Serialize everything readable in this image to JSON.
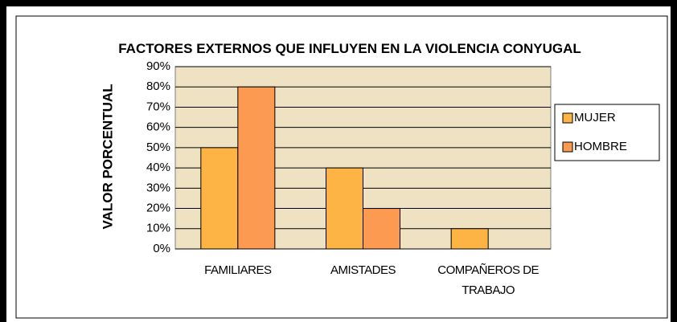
{
  "chart_data": {
    "type": "bar",
    "title": "FACTORES EXTERNOS QUE INFLUYEN EN LA VIOLENCIA CONYUGAL",
    "y_label": "VALOR PORCENTUAL",
    "categories": [
      "FAMILIARES",
      "AMISTADES",
      "COMPAÑEROS DE TRABAJO"
    ],
    "series": [
      {
        "name": "MUJER",
        "color": "#fdb444",
        "values": [
          50,
          40,
          10
        ]
      },
      {
        "name": "HOMBRE",
        "color": "#fb9a50",
        "values": [
          80,
          20,
          0
        ]
      }
    ],
    "ylim": [
      0,
      90
    ],
    "yticks": [
      {
        "value": 0,
        "label": "0%"
      },
      {
        "value": 10,
        "label": "10%"
      },
      {
        "value": 20,
        "label": "20%"
      },
      {
        "value": 30,
        "label": "30%"
      },
      {
        "value": 40,
        "label": "40%"
      },
      {
        "value": 50,
        "label": "50%"
      },
      {
        "value": 60,
        "label": "60%"
      },
      {
        "value": 70,
        "label": "70%"
      },
      {
        "value": 80,
        "label": "80%"
      },
      {
        "value": 90,
        "label": "90%"
      }
    ],
    "grid": true,
    "legend": "right"
  }
}
